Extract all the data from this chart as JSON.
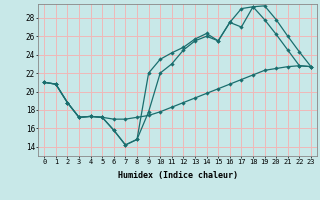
{
  "xlabel": "Humidex (Indice chaleur)",
  "xlim": [
    -0.5,
    23.5
  ],
  "ylim": [
    13.0,
    29.5
  ],
  "xticks": [
    0,
    1,
    2,
    3,
    4,
    5,
    6,
    7,
    8,
    9,
    10,
    11,
    12,
    13,
    14,
    15,
    16,
    17,
    18,
    19,
    20,
    21,
    22,
    23
  ],
  "yticks": [
    14,
    16,
    18,
    20,
    22,
    24,
    26,
    28
  ],
  "bg_color": "#c8e8e8",
  "line_color": "#1a6e6e",
  "grid_color": "#f0b8b8",
  "line1_x": [
    0,
    1,
    2,
    3,
    4,
    5,
    6,
    7,
    8,
    9,
    10,
    11,
    12,
    13,
    14,
    15,
    16,
    17,
    18,
    19,
    20,
    21,
    22,
    23
  ],
  "line1_y": [
    21.0,
    20.8,
    18.8,
    17.2,
    17.3,
    17.2,
    17.0,
    17.0,
    17.2,
    17.4,
    17.8,
    18.3,
    18.8,
    19.3,
    19.8,
    20.3,
    20.8,
    21.3,
    21.8,
    22.3,
    22.5,
    22.7,
    22.8,
    22.7
  ],
  "line2_x": [
    0,
    1,
    2,
    3,
    4,
    5,
    6,
    7,
    8,
    9,
    10,
    11,
    12,
    13,
    14,
    15,
    16,
    17,
    18,
    19,
    20,
    21,
    22,
    23
  ],
  "line2_y": [
    21.0,
    20.8,
    18.8,
    17.2,
    17.3,
    17.2,
    15.8,
    14.2,
    14.8,
    17.8,
    22.0,
    23.0,
    24.5,
    25.5,
    26.0,
    25.5,
    27.5,
    29.0,
    29.2,
    27.8,
    26.2,
    24.5,
    22.8,
    22.7
  ],
  "line3_x": [
    0,
    1,
    2,
    3,
    4,
    5,
    6,
    7,
    8,
    9,
    10,
    11,
    12,
    13,
    14,
    15,
    16,
    17,
    18,
    19,
    20,
    21,
    22,
    23
  ],
  "line3_y": [
    21.0,
    20.8,
    18.8,
    17.2,
    17.3,
    17.2,
    15.8,
    14.2,
    14.8,
    22.0,
    23.5,
    24.2,
    24.8,
    25.7,
    26.3,
    25.5,
    27.5,
    27.0,
    29.2,
    29.3,
    27.8,
    26.0,
    24.3,
    22.7
  ]
}
